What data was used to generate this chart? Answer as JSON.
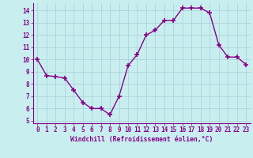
{
  "x": [
    0,
    1,
    2,
    3,
    4,
    5,
    6,
    7,
    8,
    9,
    10,
    11,
    12,
    13,
    14,
    15,
    16,
    17,
    18,
    19,
    20,
    21,
    22,
    23
  ],
  "y": [
    10.0,
    8.7,
    8.6,
    8.5,
    7.5,
    6.5,
    6.0,
    6.0,
    5.5,
    7.0,
    9.5,
    10.4,
    12.0,
    12.4,
    13.2,
    13.2,
    14.2,
    14.2,
    14.2,
    13.8,
    11.2,
    10.2,
    10.2,
    9.6
  ],
  "line_color": "#880088",
  "marker": "+",
  "marker_size": 4,
  "marker_lw": 1.2,
  "bg_color": "#c8eef0",
  "grid_color": "#b0d8dc",
  "xlabel": "Windchill (Refroidissement éolien,°C)",
  "xlabel_color": "#880088",
  "tick_color": "#880088",
  "spine_color": "#880088",
  "ylim": [
    4.8,
    14.6
  ],
  "xlim": [
    -0.5,
    23.5
  ],
  "yticks": [
    5,
    6,
    7,
    8,
    9,
    10,
    11,
    12,
    13,
    14
  ],
  "xticks": [
    0,
    1,
    2,
    3,
    4,
    5,
    6,
    7,
    8,
    9,
    10,
    11,
    12,
    13,
    14,
    15,
    16,
    17,
    18,
    19,
    20,
    21,
    22,
    23
  ],
  "tick_fontsize": 5.5,
  "xlabel_fontsize": 5.8,
  "linewidth": 1.0
}
